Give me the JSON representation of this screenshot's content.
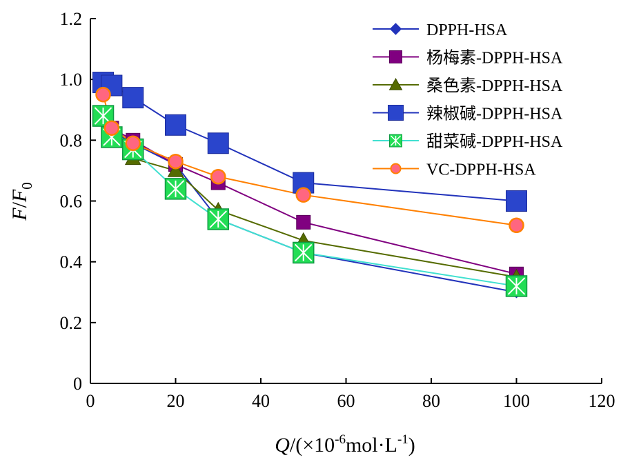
{
  "chart_data": {
    "type": "line",
    "title": "",
    "xlabel": {
      "var": "Q",
      "unit_prefix": "/(×10",
      "unit_exp": "-6",
      "unit_mid": "mol·L",
      "unit_exp2": "-1",
      "unit_suffix": ")"
    },
    "ylabel": {
      "var": "F",
      "slash": "/",
      "var2": "F",
      "sub": "0"
    },
    "xlim": [
      0,
      120
    ],
    "ylim": [
      0,
      1.2
    ],
    "xticks": [
      "0",
      "20",
      "40",
      "60",
      "80",
      "100",
      "120"
    ],
    "yticks": [
      "0",
      "0.2",
      "0.4",
      "0.6",
      "0.8",
      "1.0",
      "1.2"
    ],
    "legend_position": "top-right",
    "grid": false,
    "series": [
      {
        "name": "DPPH-HSA",
        "color": "#2233bb",
        "marker": "diamond",
        "marker_fill": "#2233bb",
        "x": [
          3,
          5,
          10,
          20,
          30,
          50,
          100
        ],
        "y": [
          0.88,
          0.83,
          0.79,
          0.72,
          0.54,
          0.43,
          0.3
        ]
      },
      {
        "name": "杨梅素-DPPH-HSA",
        "color": "#800080",
        "marker": "square",
        "marker_fill": "#800080",
        "x": [
          3,
          5,
          10,
          20,
          30,
          50,
          100
        ],
        "y": [
          0.89,
          0.84,
          0.8,
          0.72,
          0.66,
          0.53,
          0.36
        ]
      },
      {
        "name": "桑色素-DPPH-HSA",
        "color": "#556b00",
        "marker": "triangle",
        "marker_fill": "#556b00",
        "x": [
          3,
          5,
          10,
          20,
          30,
          50,
          100
        ],
        "y": [
          0.87,
          0.81,
          0.74,
          0.7,
          0.57,
          0.47,
          0.35
        ]
      },
      {
        "name": "辣椒碱-DPPH-HSA",
        "color": "#2233bb",
        "marker": "big-square",
        "marker_fill": "#2a45cc",
        "x": [
          3,
          5,
          10,
          20,
          30,
          50,
          100
        ],
        "y": [
          0.99,
          0.98,
          0.94,
          0.85,
          0.79,
          0.66,
          0.6
        ]
      },
      {
        "name": "甜菜碱-DPPH-HSA",
        "color": "#40e0d0",
        "marker": "x-square",
        "marker_fill": "#22dd55",
        "x": [
          3,
          5,
          10,
          20,
          30,
          50,
          100
        ],
        "y": [
          0.88,
          0.81,
          0.77,
          0.64,
          0.54,
          0.43,
          0.32
        ]
      },
      {
        "name": "VC-DPPH-HSA",
        "color": "#ff8000",
        "marker": "circle",
        "marker_fill": "#ff6680",
        "x": [
          3,
          5,
          10,
          20,
          30,
          50,
          100
        ],
        "y": [
          0.95,
          0.84,
          0.79,
          0.73,
          0.68,
          0.62,
          0.52
        ]
      }
    ]
  }
}
